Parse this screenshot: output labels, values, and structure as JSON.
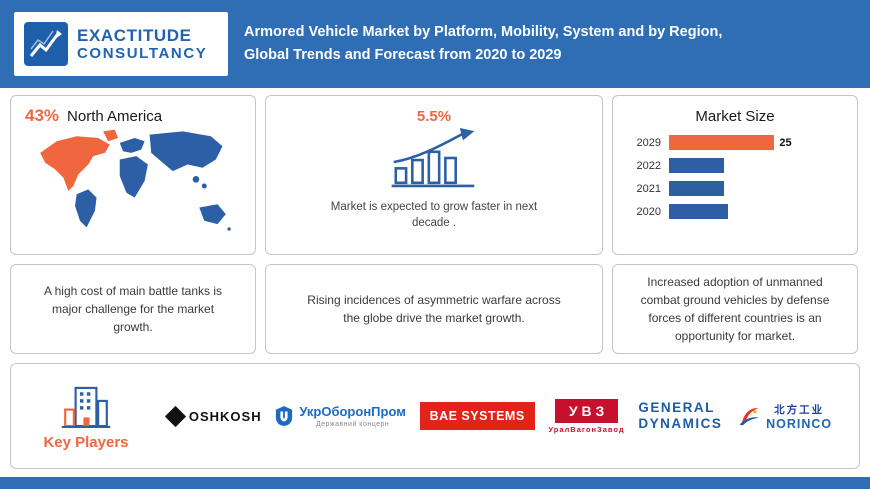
{
  "header": {
    "logo_line1": "EXACTITUDE",
    "logo_line2": "CONSULTANCY",
    "title_line1": "Armored Vehicle Market by Platform, Mobility, System and by Region,",
    "title_line2": "Global Trends and Forecast from 2020 to 2029"
  },
  "colors": {
    "header_blue": "#2f6eb5",
    "accent_orange": "#f0663f",
    "bar_blue": "#2e5fa3"
  },
  "cards": {
    "region": {
      "pct": "43%",
      "label": "North America"
    },
    "growth": {
      "pct": "5.5%",
      "caption": "Market is expected to grow faster in next decade ."
    },
    "market_size_title": "Market Size",
    "challenge": "A high cost of main battle tanks is major challenge for the market growth.",
    "driver": "Rising incidences of asymmetric warfare across the globe drive the market growth.",
    "opportunity": "Increased adoption of unmanned combat ground vehicles by defense forces of different countries is an opportunity for market."
  },
  "chart_data": {
    "type": "bar",
    "orientation": "horizontal",
    "title": "Market Size",
    "categories": [
      "2029",
      "2022",
      "2021",
      "2020"
    ],
    "values": [
      25,
      13,
      13,
      14
    ],
    "data_labels": [
      "25",
      "",
      "",
      ""
    ],
    "bar_colors": [
      "#f0663f",
      "#2e5fa3",
      "#2e5fa3",
      "#2e5fa3"
    ],
    "legend": "none",
    "grid": "off"
  },
  "key_players": {
    "title": "Key Players",
    "logos": [
      {
        "name": "Oshkosh",
        "text": "OSHKOSH"
      },
      {
        "name": "UkrOboronProm",
        "text": "УкрОборонПром",
        "subtext": "Державний концерн"
      },
      {
        "name": "BAE Systems",
        "text": "BAE SYSTEMS"
      },
      {
        "name": "Uralvagonzavod",
        "text": "УВЗ",
        "subtext": "УралВагонЗавод"
      },
      {
        "name": "General Dynamics",
        "line1": "GENERAL",
        "line2": "DYNAMICS"
      },
      {
        "name": "Norinco",
        "text": "北方工业",
        "subtext": "NORINCO"
      }
    ]
  }
}
